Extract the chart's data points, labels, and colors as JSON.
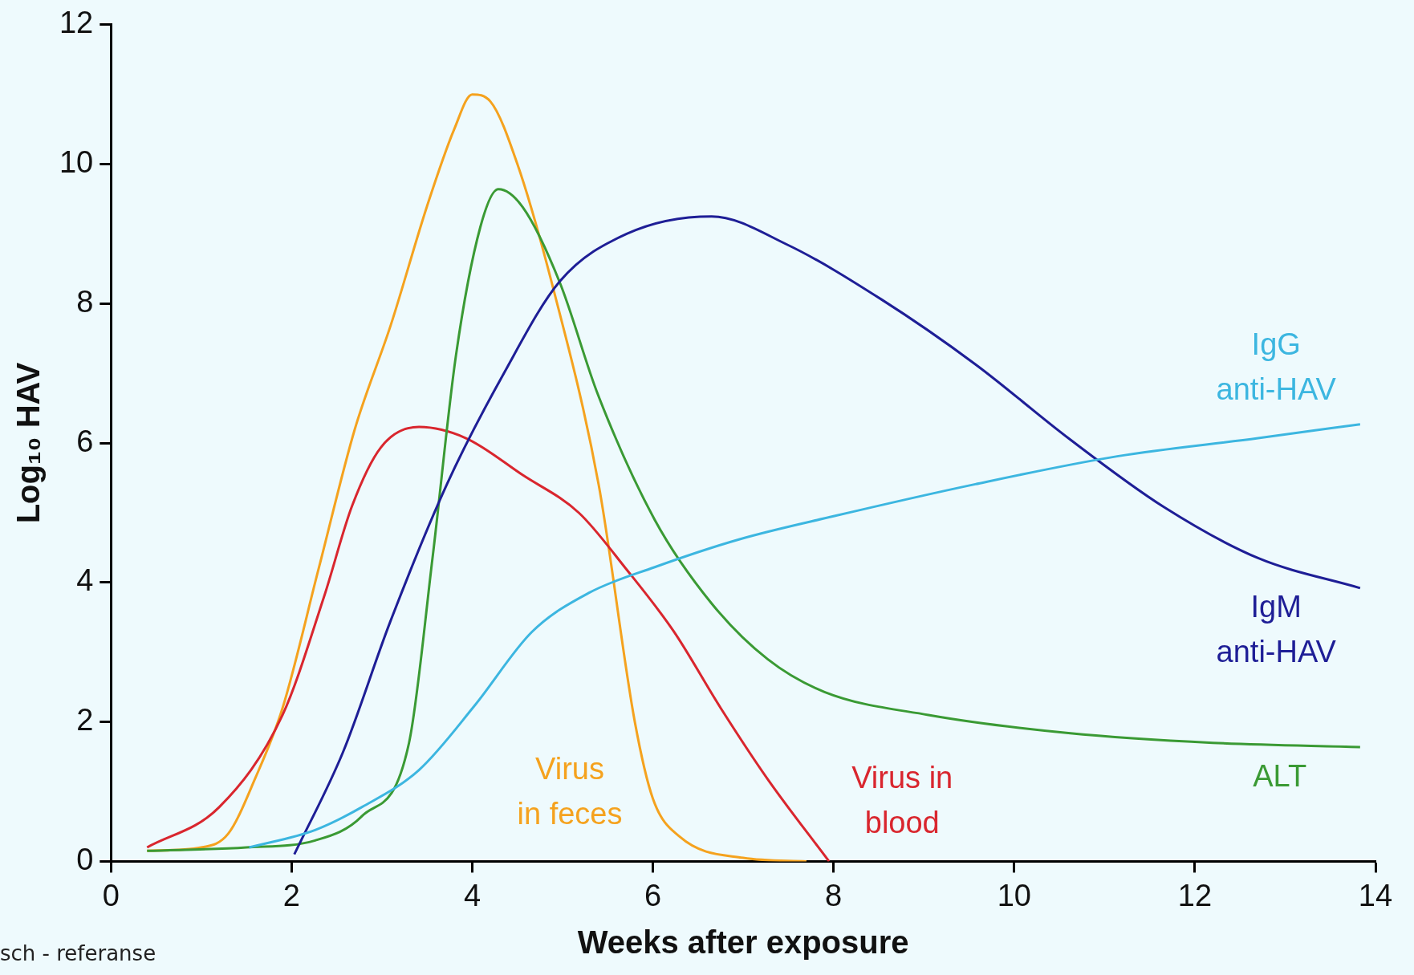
{
  "chart_data": {
    "type": "line",
    "xlabel": "Weeks after exposure",
    "ylabel": "Log₁₀ HAV",
    "xlim": [
      0,
      14
    ],
    "ylim": [
      0,
      12
    ],
    "xticks": [
      0,
      2,
      4,
      6,
      8,
      10,
      12,
      14
    ],
    "yticks": [
      0,
      2,
      4,
      6,
      8,
      10,
      12
    ],
    "grid": false,
    "legend": false,
    "marker": "none",
    "line_style": "solid",
    "series": [
      {
        "name": "Virus\nin feces",
        "color": "#f5a21e",
        "x": [
          0.4,
          1.0,
          1.3,
          1.6,
          1.9,
          2.3,
          2.7,
          3.1,
          3.5,
          3.8,
          4.0,
          4.2,
          4.5,
          4.9,
          5.4,
          5.8,
          6.0,
          6.3,
          7.0,
          7.7
        ],
        "values": [
          0.15,
          0.2,
          0.4,
          1.2,
          2.2,
          4.2,
          6.2,
          7.7,
          9.4,
          10.5,
          11.0,
          10.9,
          10.0,
          8.2,
          5.4,
          2.0,
          0.9,
          0.35,
          0.05,
          0
        ]
      },
      {
        "name": "Virus in\nblood",
        "color": "#d9262e",
        "x": [
          0.4,
          1.2,
          1.9,
          2.36,
          2.67,
          2.99,
          3.41,
          3.93,
          4.56,
          5.18,
          5.7,
          6.23,
          6.75,
          7.27,
          7.95
        ],
        "values": [
          0.2,
          0.78,
          2.1,
          3.8,
          5.1,
          5.94,
          6.23,
          6.07,
          5.54,
          5.0,
          4.2,
          3.3,
          2.2,
          1.18,
          0
        ]
      },
      {
        "name": "ALT",
        "color": "#3a9a34",
        "x": [
          0.4,
          1.5,
          2.26,
          2.78,
          3.3,
          3.56,
          3.82,
          4.09,
          4.29,
          4.56,
          4.97,
          5.39,
          6.02,
          6.65,
          7.27,
          7.9,
          9.05,
          10.6,
          12.2,
          13.83
        ],
        "values": [
          0.15,
          0.2,
          0.3,
          0.65,
          1.7,
          4.35,
          7.26,
          9.1,
          9.64,
          9.38,
          8.3,
          6.7,
          4.9,
          3.7,
          2.9,
          2.43,
          2.1,
          1.84,
          1.7,
          1.64
        ]
      },
      {
        "name": "IgM\nanti-HAV",
        "color": "#1e1e96",
        "x": [
          2.03,
          2.57,
          3.09,
          3.72,
          4.35,
          4.97,
          5.71,
          6.65,
          7.48,
          8.53,
          9.57,
          10.6,
          11.66,
          12.7,
          13.83
        ],
        "values": [
          0.1,
          1.57,
          3.43,
          5.41,
          7.0,
          8.32,
          9.0,
          9.25,
          8.85,
          8.06,
          7.13,
          6.07,
          5.08,
          4.35,
          3.92
        ]
      },
      {
        "name": "IgG\nanti-HAV",
        "color": "#3cb6e0",
        "x": [
          1.53,
          2.26,
          2.78,
          3.41,
          4.03,
          4.66,
          5.29,
          6.02,
          6.96,
          8.0,
          9.57,
          11.14,
          12.7,
          13.83
        ],
        "values": [
          0.2,
          0.45,
          0.78,
          1.31,
          2.24,
          3.29,
          3.85,
          4.22,
          4.62,
          4.95,
          5.41,
          5.81,
          6.07,
          6.27
        ]
      }
    ],
    "annotations": [
      "sch - referanse"
    ]
  }
}
